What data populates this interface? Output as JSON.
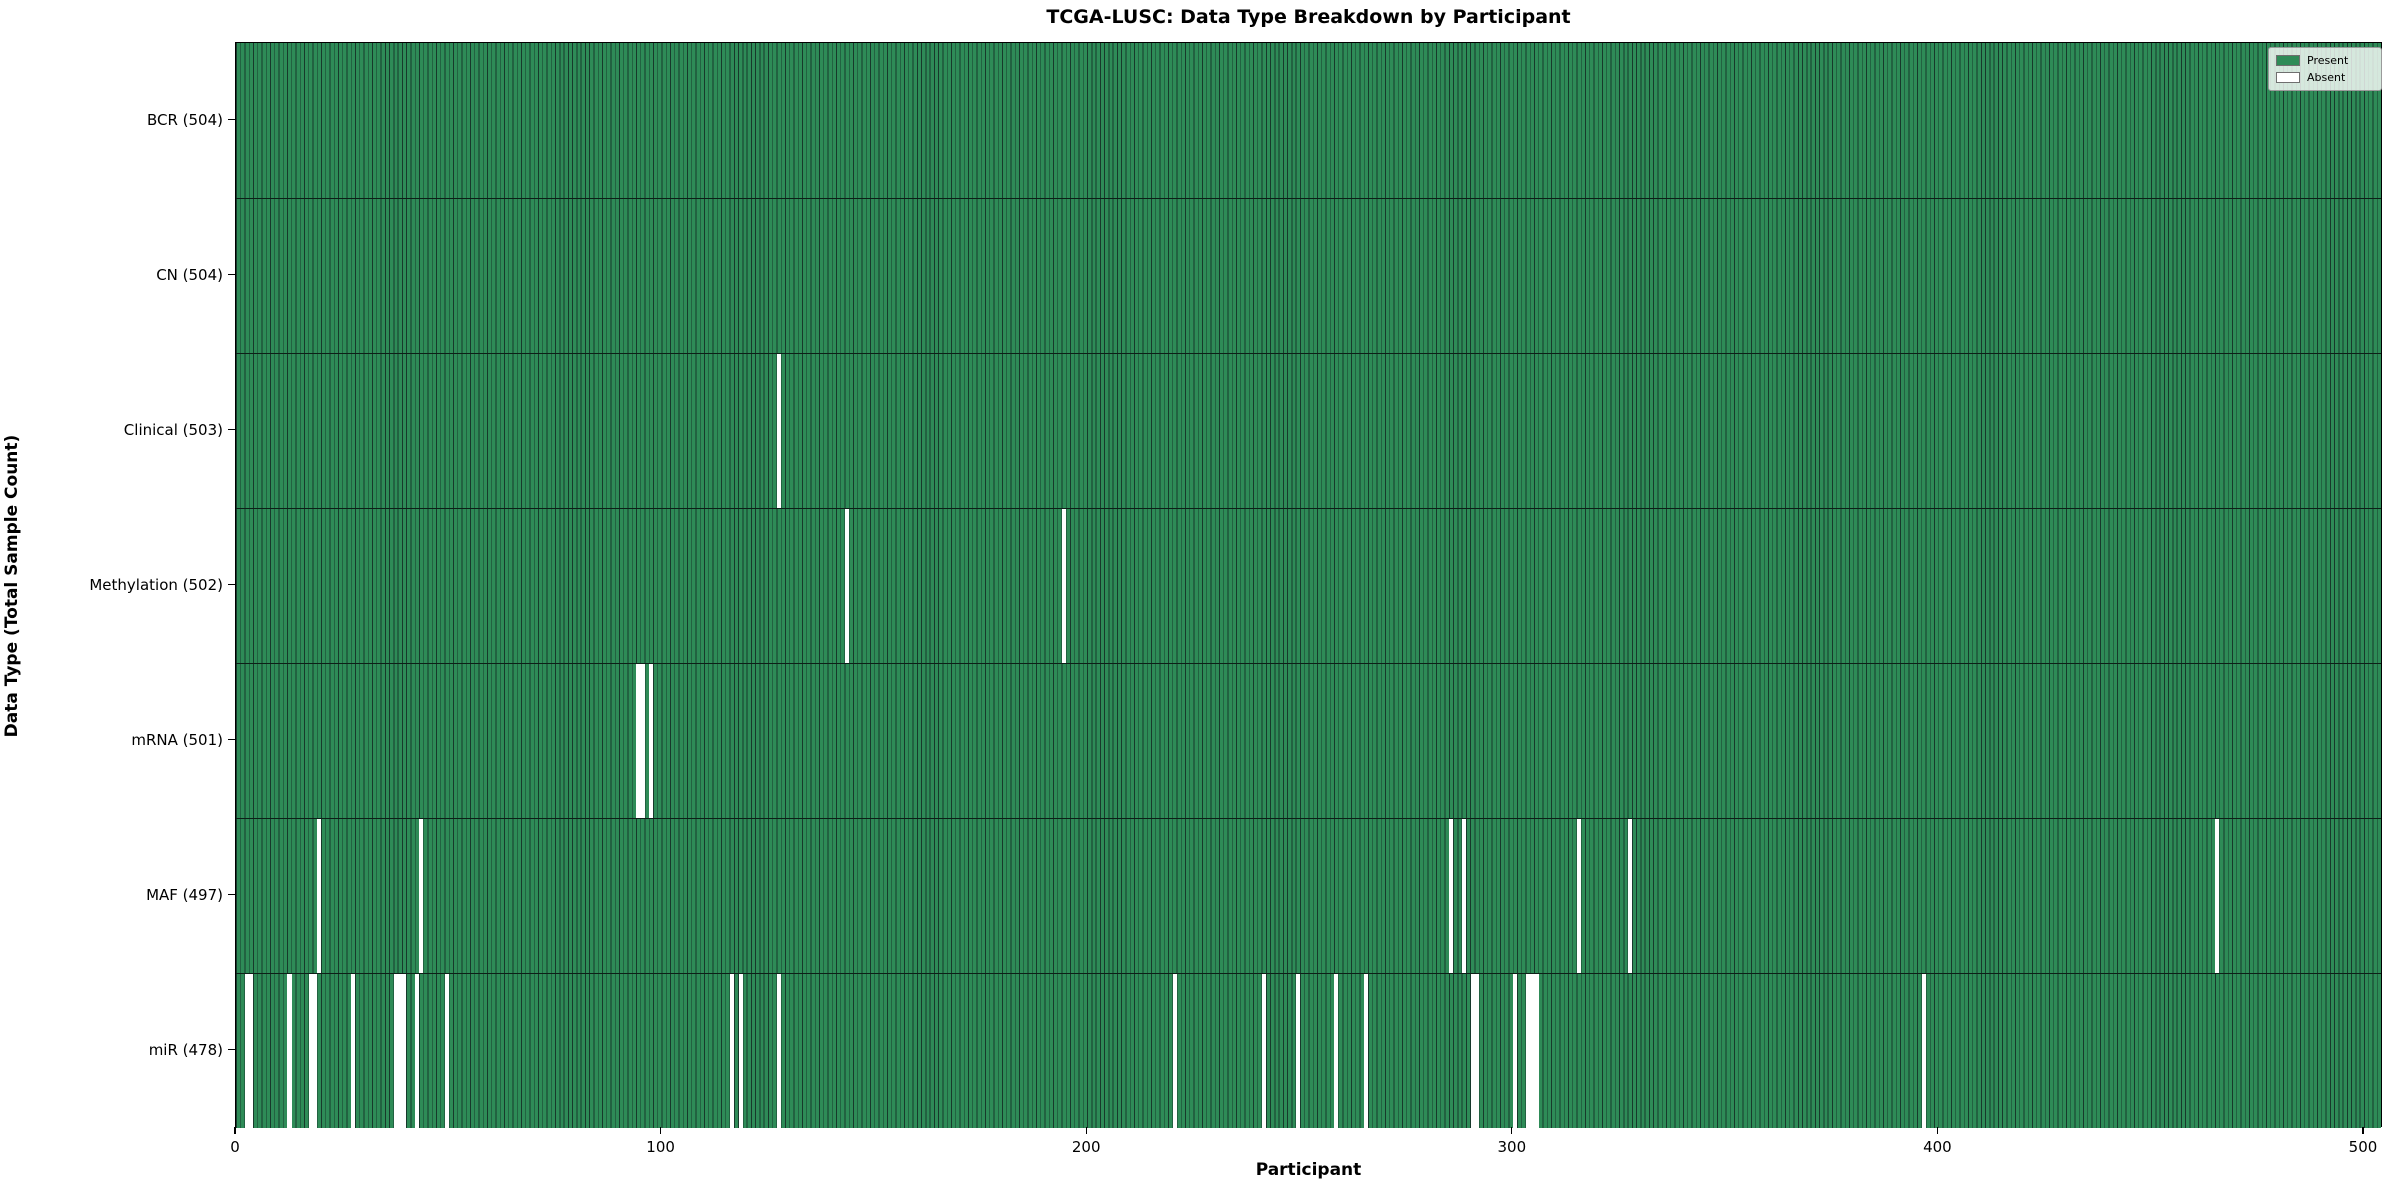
{
  "title": "TCGA-LUSC: Data Type Breakdown by Participant",
  "xlabel": "Participant",
  "ylabel": "Data Type (Total Sample Count)",
  "legend": {
    "items": [
      {
        "label": "Present",
        "color": "#2e8b57"
      },
      {
        "label": "Absent",
        "color": "#ffffff"
      }
    ]
  },
  "colors": {
    "present": "#2e8b57",
    "absent": "#ffffff",
    "bar_edge": "#17392b",
    "axis": "#000000",
    "background": "#ffffff"
  },
  "chart_data": {
    "type": "heatmap",
    "title": "TCGA-LUSC: Data Type Breakdown by Participant",
    "xlabel": "Participant",
    "ylabel": "Data Type (Total Sample Count)",
    "legend_entries": [
      "Present",
      "Absent"
    ],
    "legend_position": "upper right",
    "grid": false,
    "n_participants": 504,
    "x_ticks": [
      0,
      100,
      200,
      300,
      400,
      500
    ],
    "x_range": [
      0,
      504.5
    ],
    "rows": [
      {
        "label": "BCR (504)",
        "present_count": 504,
        "absent_participants": []
      },
      {
        "label": "CN (504)",
        "present_count": 504,
        "absent_participants": []
      },
      {
        "label": "Clinical (503)",
        "present_count": 503,
        "absent_participants": [
          128
        ]
      },
      {
        "label": "Methylation (502)",
        "present_count": 502,
        "absent_participants": [
          144,
          195
        ]
      },
      {
        "label": "mRNA (501)",
        "present_count": 501,
        "absent_participants": [
          95,
          96,
          98
        ]
      },
      {
        "label": "MAF (497)",
        "present_count": 497,
        "absent_participants": [
          20,
          44,
          286,
          289,
          316,
          328,
          466
        ]
      },
      {
        "label": "miR (478)",
        "present_count": 478,
        "absent_participants": [
          3,
          4,
          13,
          18,
          19,
          28,
          38,
          39,
          40,
          43,
          50,
          117,
          119,
          128,
          221,
          242,
          250,
          259,
          266,
          291,
          292,
          301,
          304,
          305,
          306,
          397
        ]
      }
    ]
  }
}
